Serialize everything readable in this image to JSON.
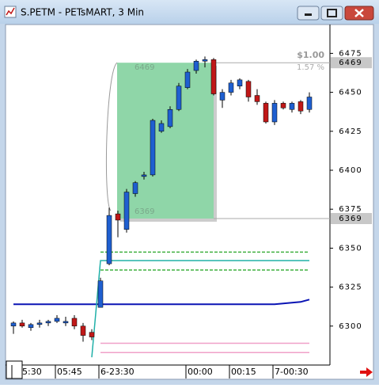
{
  "window": {
    "title": "S.PETM - PETsMART, 3 Min"
  },
  "chart_data": {
    "type": "candlestick",
    "categories": [
      "5:30",
      null,
      null,
      null,
      null,
      "05:45",
      null,
      null,
      null,
      null,
      "6-23:30",
      null,
      null,
      null,
      null,
      null,
      null,
      null,
      null,
      null,
      "00:00",
      null,
      null,
      null,
      null,
      "00:15",
      null,
      null,
      null,
      null,
      "7-00:30",
      null,
      null,
      null,
      null
    ],
    "open": [
      6300,
      6302,
      6299,
      6301,
      6302,
      6303,
      6302,
      6305,
      6300,
      6296,
      6312,
      6340,
      6372,
      6362,
      6385,
      6396,
      6397,
      6425,
      6428,
      6439,
      6453,
      6464,
      6470,
      6471,
      6445,
      6450,
      6454,
      6457,
      6448,
      6443,
      6431,
      6443,
      6439,
      6444,
      6439
    ],
    "high": [
      6303,
      6304,
      6302,
      6304,
      6304,
      6307,
      6306,
      6307,
      6302,
      6298,
      6331,
      6376,
      6374,
      6388,
      6393,
      6399,
      6433,
      6432,
      6441,
      6456,
      6465,
      6471,
      6473,
      6472,
      6452,
      6458,
      6459,
      6458,
      6452,
      6444,
      6445,
      6444,
      6444,
      6445,
      6450
    ],
    "low": [
      6295,
      6299,
      6297,
      6299,
      6300,
      6302,
      6300,
      6298,
      6290,
      6291,
      6312,
      6339,
      6357,
      6360,
      6383,
      6394,
      6396,
      6424,
      6427,
      6438,
      6452,
      6462,
      6466,
      6448,
      6440,
      6448,
      6452,
      6444,
      6442,
      6430,
      6429,
      6439,
      6437,
      6436,
      6437
    ],
    "close": [
      6302,
      6300,
      6301,
      6302,
      6303,
      6305,
      6303,
      6300,
      6294,
      6293,
      6329,
      6371,
      6368,
      6386,
      6392,
      6397,
      6432,
      6430,
      6439,
      6454,
      6463,
      6470,
      6471,
      6449,
      6450,
      6456,
      6458,
      6447,
      6444,
      6431,
      6443,
      6440,
      6443,
      6438,
      6447
    ],
    "up_color": "#1f5fd0",
    "down_color": "#c01818",
    "overlays": [
      {
        "color": "#0a14b4",
        "style": "solid",
        "values": [
          6314,
          6314,
          6314,
          6314,
          6314,
          6314,
          6314,
          6314,
          6314,
          6314,
          6314,
          6314,
          6314,
          6314,
          6314,
          6314,
          6314,
          6314,
          6314,
          6314,
          6314,
          6314,
          6314,
          6314,
          6314,
          6314,
          6314,
          6314,
          6314,
          6314,
          6314,
          6314.5,
          6315,
          6315.5,
          6317
        ]
      },
      {
        "color": "#20b0a8",
        "style": "solid",
        "values": [
          null,
          null,
          null,
          null,
          null,
          null,
          null,
          null,
          null,
          6280,
          6342,
          6342,
          6342,
          6342,
          6342,
          6342,
          6342,
          6342,
          6342,
          6342,
          6342,
          6342,
          6342,
          6342,
          6342,
          6342,
          6342,
          6342,
          6342,
          6342,
          6342,
          6342,
          6342,
          6342,
          6342
        ]
      },
      {
        "color": "#40b040",
        "style": "dashed",
        "values": [
          null,
          null,
          null,
          null,
          null,
          null,
          null,
          null,
          null,
          null,
          6347.5,
          6347.5,
          6347.5,
          6347.5,
          6347.5,
          6347.5,
          6347.5,
          6347.5,
          6347.5,
          6347.5,
          6347.5,
          6347.5,
          6347.5,
          6347.5,
          6347.5,
          6347.5,
          6347.5,
          6347.5,
          6347.5,
          6347.5,
          6347.5,
          6347.5,
          6347.5,
          6347.5,
          6347.5
        ]
      },
      {
        "color": "#40b040",
        "style": "dashed",
        "values": [
          null,
          null,
          null,
          null,
          null,
          null,
          null,
          null,
          null,
          null,
          6336,
          6336,
          6336,
          6336,
          6336,
          6336,
          6336,
          6336,
          6336,
          6336,
          6336,
          6336,
          6336,
          6336,
          6336,
          6336,
          6336,
          6336,
          6336,
          6336,
          6336,
          6336,
          6336,
          6336,
          6336
        ]
      },
      {
        "color": "#f0a0c8",
        "style": "solid",
        "values": [
          null,
          null,
          null,
          null,
          null,
          null,
          null,
          null,
          null,
          null,
          6289,
          6289,
          6289,
          6289,
          6289,
          6289,
          6289,
          6289,
          6289,
          6289,
          6289,
          6289,
          6289,
          6289,
          6289,
          6289,
          6289,
          6289,
          6289,
          6289,
          6289,
          6289,
          6289,
          6289,
          6289
        ]
      },
      {
        "color": "#f0a0c8",
        "style": "solid",
        "values": [
          null,
          null,
          null,
          null,
          null,
          null,
          null,
          null,
          null,
          null,
          6283,
          6283,
          6283,
          6283,
          6283,
          6283,
          6283,
          6283,
          6283,
          6283,
          6283,
          6283,
          6283,
          6283,
          6283,
          6283,
          6283,
          6283,
          6283,
          6283,
          6283,
          6283,
          6283,
          6283,
          6283
        ]
      }
    ],
    "annotation": {
      "top": 6469,
      "bottom": 6369,
      "change": "$1.00",
      "percent": "1.57 %",
      "color": "#8fd6a8"
    },
    "ylim": [
      6275,
      6494
    ],
    "yticks": [
      6300,
      6325,
      6350,
      6375,
      6400,
      6425,
      6450,
      6475
    ]
  }
}
